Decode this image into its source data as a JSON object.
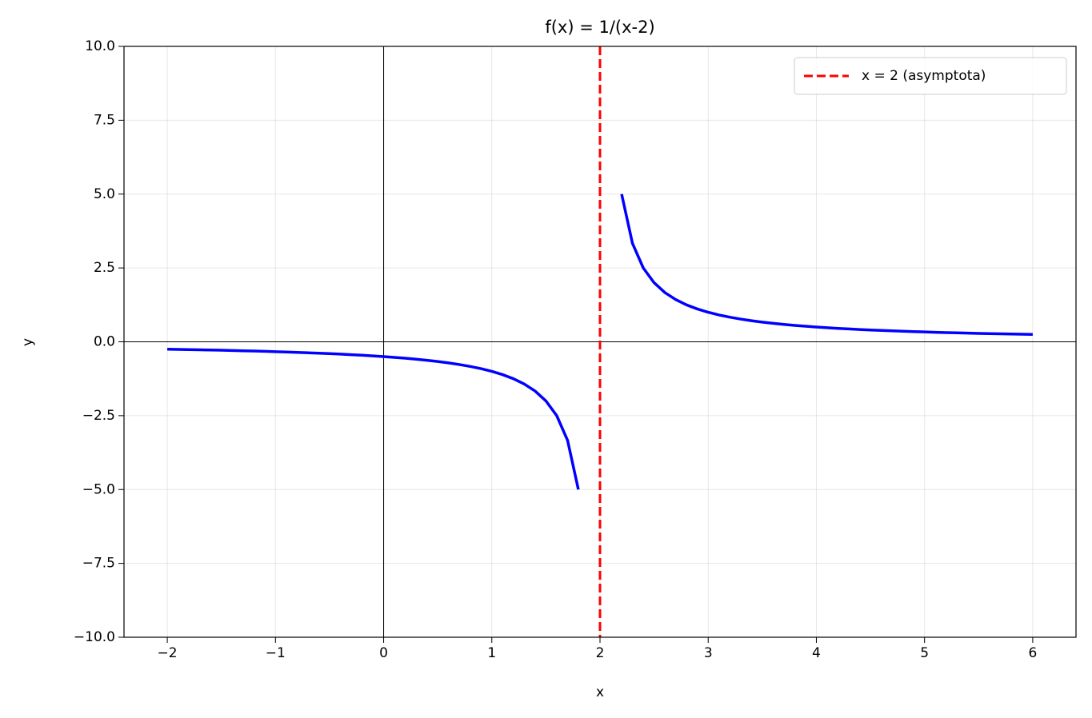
{
  "chart_data": {
    "type": "line",
    "title": "f(x) = 1/(x-2)",
    "x_label": "x",
    "y_label": "y",
    "x": [
      -2.0,
      -1.9,
      -1.8,
      -1.7,
      -1.6,
      -1.5,
      -1.4,
      -1.3,
      -1.2,
      -1.1,
      -1.0,
      -0.9,
      -0.8,
      -0.7,
      -0.6,
      -0.5,
      -0.4,
      -0.3,
      -0.2,
      -0.1,
      0.0,
      0.1,
      0.2,
      0.3,
      0.4,
      0.5,
      0.6,
      0.7,
      0.8,
      0.9,
      1.0,
      1.1,
      1.2,
      1.3,
      1.4,
      1.5,
      1.6,
      1.7,
      1.8,
      1.9,
      2.0,
      2.1,
      2.2,
      2.3,
      2.4,
      2.5,
      2.6,
      2.7,
      2.8,
      2.9,
      3.0,
      3.1,
      3.2,
      3.3,
      3.4,
      3.5,
      3.6,
      3.7,
      3.8,
      3.9,
      4.0,
      4.1,
      4.2,
      4.3,
      4.4,
      4.5,
      4.6,
      4.7,
      4.8,
      4.9,
      5.0,
      5.1,
      5.2,
      5.3,
      5.4,
      5.5,
      5.6,
      5.7,
      5.8,
      5.9,
      6.0
    ],
    "series": [
      {
        "color": "#0000ff",
        "values": [
          -0.25,
          -0.2564,
          -0.2632,
          -0.2703,
          -0.2778,
          -0.2857,
          -0.2941,
          -0.303,
          -0.3125,
          -0.3226,
          -0.3333,
          -0.3448,
          -0.3571,
          -0.3704,
          -0.3846,
          -0.4,
          -0.4167,
          -0.4348,
          -0.4545,
          -0.4762,
          -0.5,
          -0.5263,
          -0.5556,
          -0.5882,
          -0.625,
          -0.6667,
          -0.7143,
          -0.7692,
          -0.8333,
          -0.9091,
          -1,
          -1.1111,
          -1.25,
          -1.4286,
          -1.6667,
          -2,
          -2.5,
          -3.3333,
          -5,
          null,
          null,
          null,
          5,
          3.3333,
          2.5,
          2,
          1.6667,
          1.4286,
          1.25,
          1.1111,
          1,
          0.9091,
          0.8333,
          0.7692,
          0.7143,
          0.6667,
          0.625,
          0.5882,
          0.5556,
          0.5263,
          0.5,
          0.4762,
          0.4545,
          0.4348,
          0.4167,
          0.4,
          0.3846,
          0.3704,
          0.3571,
          0.3448,
          0.3333,
          0.3226,
          0.3125,
          0.303,
          0.2941,
          0.2857,
          0.2778,
          0.2703,
          0.2632,
          0.2564,
          0.25
        ]
      }
    ],
    "vlines": [
      {
        "x": 0,
        "color": "#000000"
      },
      {
        "x": 2,
        "color": "#ff0000",
        "dashed": true,
        "label": "x = 2 (asymptota)"
      }
    ],
    "hlines": [
      {
        "y": 0,
        "color": "#000000"
      }
    ],
    "xlim": [
      -2.4,
      6.4
    ],
    "xticks": [
      {
        "value": -2,
        "label": "−2"
      },
      {
        "value": -1,
        "label": "−1"
      },
      0,
      1,
      2,
      3,
      4,
      5,
      6
    ],
    "ylim": [
      -10,
      10
    ],
    "yticks": [
      {
        "value": -10,
        "label": "−10.0"
      },
      {
        "value": -7.5,
        "label": "−7.5"
      },
      {
        "value": -5,
        "label": "−5.0"
      },
      {
        "value": -2.5,
        "label": "−2.5"
      },
      {
        "value": 0,
        "label": "0.0"
      },
      2.5,
      {
        "value": 5,
        "label": "5.0"
      },
      7.5,
      {
        "value": 10,
        "label": "10.0"
      }
    ],
    "grid": true,
    "legend": "upper right"
  }
}
